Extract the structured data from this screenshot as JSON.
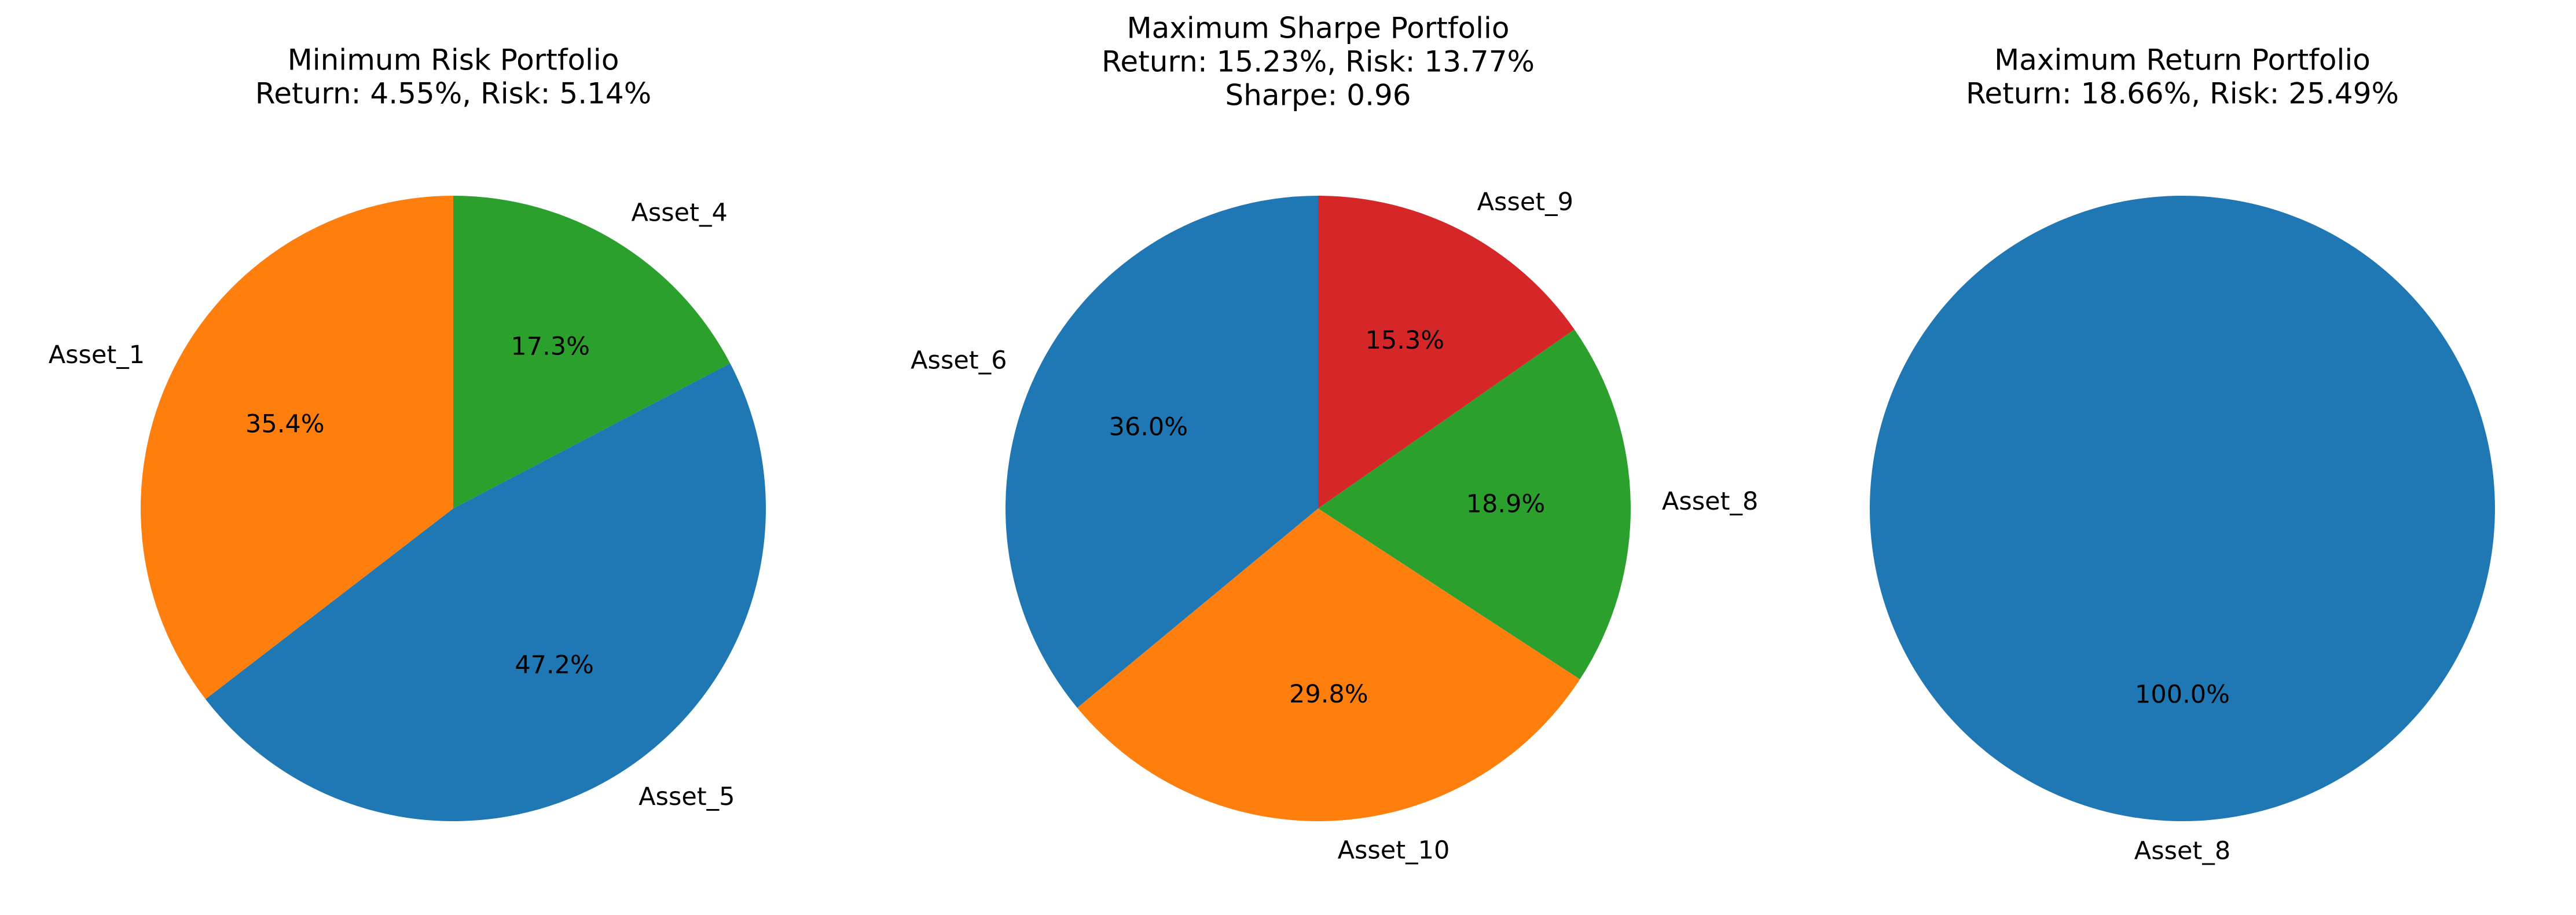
{
  "chart_data": [
    {
      "type": "pie",
      "title": "Minimum Risk Portfolio",
      "subtitle_lines": [
        "Return: 4.55%, Risk: 5.14%"
      ],
      "categories": [
        "Asset_4",
        "Asset_5",
        "Asset_1"
      ],
      "values": [
        17.3,
        47.2,
        35.4
      ],
      "value_labels": [
        "17.3%",
        "47.2%",
        "35.4%"
      ],
      "colors": [
        "#2ca02c",
        "#1f77b4",
        "#ff7f0e"
      ],
      "start": "top, clockwise"
    },
    {
      "type": "pie",
      "title": "Maximum Sharpe Portfolio",
      "subtitle_lines": [
        "Return: 15.23%, Risk: 13.77%",
        "Sharpe: 0.96"
      ],
      "categories": [
        "Asset_9",
        "Asset_8",
        "Asset_10",
        "Asset_6"
      ],
      "values": [
        15.3,
        18.9,
        29.8,
        36.0
      ],
      "value_labels": [
        "15.3%",
        "18.9%",
        "29.8%",
        "36.0%"
      ],
      "colors": [
        "#d62728",
        "#2ca02c",
        "#ff7f0e",
        "#1f77b4"
      ],
      "start": "top, clockwise"
    },
    {
      "type": "pie",
      "title": "Maximum Return Portfolio",
      "subtitle_lines": [
        "Return: 18.66%, Risk: 25.49%"
      ],
      "categories": [
        "Asset_8"
      ],
      "values": [
        100.0
      ],
      "value_labels": [
        "100.0%"
      ],
      "colors": [
        "#1f77b4"
      ],
      "start": "top, clockwise"
    }
  ]
}
